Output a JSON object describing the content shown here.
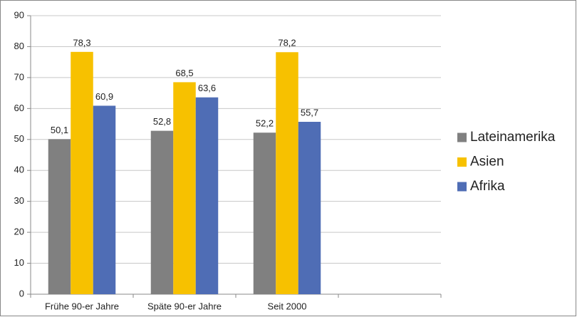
{
  "chart_data": {
    "type": "bar",
    "categories": [
      "Frühe 90-er Jahre",
      "Späte 90-er Jahre",
      "Seit 2000",
      null
    ],
    "series": [
      {
        "name": "Lateinamerika",
        "color": "#808080",
        "values": [
          50.1,
          52.8,
          52.2,
          null
        ],
        "value_labels": [
          "50,1",
          "52,8",
          "52,2",
          null
        ]
      },
      {
        "name": "Asien",
        "color": "#f7c100",
        "values": [
          78.3,
          68.5,
          78.2,
          null
        ],
        "value_labels": [
          "78,3",
          "68,5",
          "78,2",
          null
        ]
      },
      {
        "name": "Afrika",
        "color": "#4f6db5",
        "values": [
          60.9,
          63.6,
          55.7,
          null
        ],
        "value_labels": [
          "60,9",
          "63,6",
          "55,7",
          null
        ]
      }
    ],
    "ylim": [
      0,
      90
    ],
    "yticks": [
      0,
      10,
      20,
      30,
      40,
      50,
      60,
      70,
      80,
      90
    ],
    "grid": true,
    "legend": "right"
  }
}
